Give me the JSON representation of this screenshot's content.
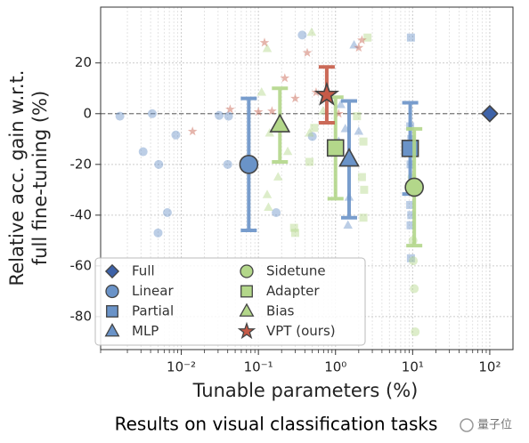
{
  "chart_data": {
    "type": "scatter",
    "xlabel": "Tunable parameters (%)",
    "ylabel": [
      "Relative acc. gain w.r.t.",
      "full fine-tuning (%)"
    ],
    "caption": "Results on visual classification tasks",
    "watermark": "量子位",
    "log_x": true,
    "grid": true,
    "legend": "lower left",
    "reference_line": 0,
    "xlim": [
      0.0009,
      200
    ],
    "ylim": [
      -93,
      42
    ],
    "xticks": [
      {
        "value": 0.01,
        "label": "10⁻²"
      },
      {
        "value": 0.1,
        "label": "10⁻¹"
      },
      {
        "value": 1,
        "label": "10⁰"
      },
      {
        "value": 10,
        "label": "10¹"
      },
      {
        "value": 100,
        "label": "10²"
      }
    ],
    "yticks": [
      -80,
      -60,
      -40,
      -20,
      0,
      20
    ],
    "series": [
      {
        "name": "Full",
        "color": "#3d62a8",
        "marker": "diamond",
        "x": [],
        "values": [],
        "mean_x": 100,
        "mean": 0
      },
      {
        "name": "Linear",
        "color": "#6a93c8",
        "marker": "circle",
        "x": [
          0.0016,
          0.0042,
          0.0032,
          0.0051,
          0.0085,
          0.0066,
          0.005,
          0.04,
          0.031,
          0.041,
          0.17,
          0.37,
          0.5
        ],
        "values": [
          -1,
          0,
          -15,
          -20,
          -8.4,
          -39,
          -47,
          -20,
          -0.7,
          -1,
          -39,
          31,
          -9
        ],
        "mean_x": 0.075,
        "mean": -20,
        "error": 26
      },
      {
        "name": "Partial",
        "color": "#6a93c8",
        "marker": "square",
        "x": [
          9.5,
          9.3,
          9.6,
          9.4,
          9.5,
          9.3,
          9.6,
          9.4,
          9.5
        ],
        "values": [
          30,
          -5,
          -10,
          -20,
          -28,
          -36,
          -40,
          -44,
          -57
        ],
        "mean_x": 9.3,
        "mean": -13.7,
        "error": 18
      },
      {
        "name": "MLP",
        "color": "#6a93c8",
        "marker": "triangle",
        "x": [
          1.74,
          1.17,
          1.34,
          1.5,
          1.45,
          2,
          1.1
        ],
        "values": [
          27,
          3.5,
          -6,
          -33,
          -44,
          -7,
          -11
        ],
        "mean_x": 1.5,
        "mean": -18,
        "error": 23
      },
      {
        "name": "Sidetune",
        "color": "#b3d78a",
        "marker": "circle",
        "x": [
          10.2,
          10.5,
          10.8,
          9.8,
          10.1
        ],
        "values": [
          -58,
          -69,
          -86,
          -25,
          -50
        ],
        "mean_x": 10.5,
        "mean": -29,
        "error": 23
      },
      {
        "name": "Adapter",
        "color": "#b3d78a",
        "marker": "square",
        "x": [
          2.6,
          2.3,
          2.2,
          2.35,
          0.53,
          0.46,
          0.29,
          0.3,
          1.9,
          2.3
        ],
        "values": [
          30,
          -11,
          -25,
          -30,
          -5.6,
          -19,
          -45,
          -47,
          -1,
          -41
        ],
        "mean_x": 1,
        "mean": -13.5,
        "error": 20
      },
      {
        "name": "Bias",
        "color": "#b3d78a",
        "marker": "triangle",
        "x": [
          0.49,
          0.13,
          0.13,
          0.135,
          0.14,
          0.18,
          0.11,
          0.24,
          0.46,
          0.69
        ],
        "values": [
          32,
          25.6,
          -32,
          -37,
          -7.7,
          -25,
          8.4,
          -15,
          -7.7,
          1
        ],
        "mean_x": 0.19,
        "mean": -4.5,
        "error": 14.5
      },
      {
        "name": "VPT (ours)",
        "color": "#c65a47",
        "marker": "star",
        "x": [
          0.12,
          0.22,
          0.3,
          0.43,
          0.15,
          0.014,
          0.043,
          0.1,
          2.2,
          2,
          1.1,
          0.56
        ],
        "values": [
          28,
          14,
          6,
          24,
          1,
          -7,
          1.7,
          0.7,
          29,
          26,
          0,
          8.4
        ],
        "mean_x": 0.77,
        "mean": 7.4,
        "error": 11
      }
    ]
  }
}
